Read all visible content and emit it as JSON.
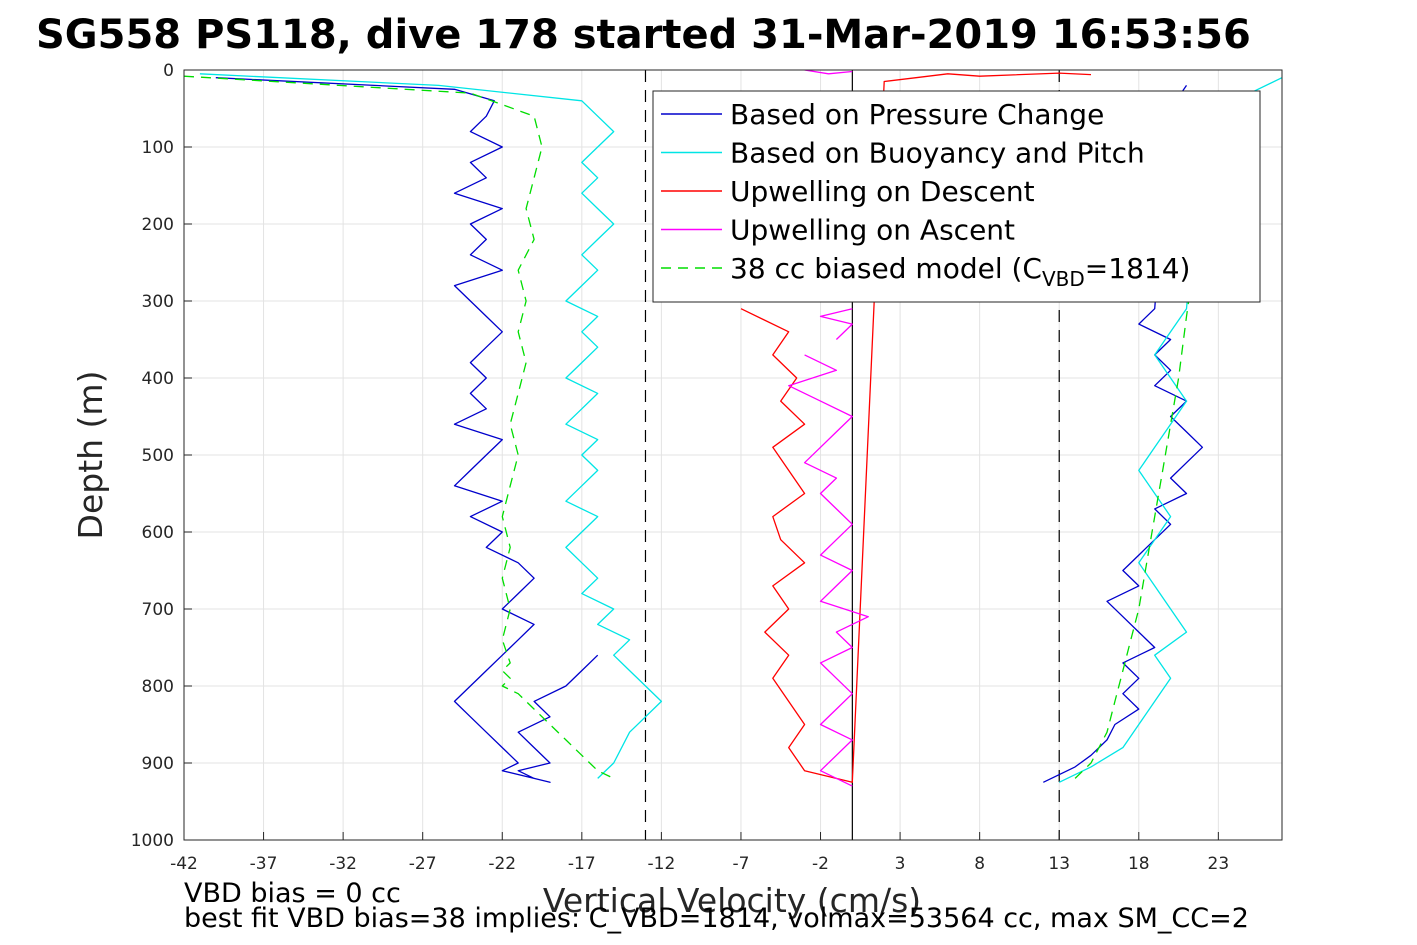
{
  "chart_data": {
    "type": "line",
    "title": "SG558 PS118, dive 178 started 31-Mar-2019 16:53:56",
    "xlabel": "Vertical Velocity (cm/s)",
    "ylabel": "Depth (m)",
    "xlim": [
      -42,
      27
    ],
    "ylim": [
      0,
      1000
    ],
    "y_reversed": true,
    "grid": true,
    "x_ticks": [
      -42,
      -37,
      -32,
      -27,
      -22,
      -17,
      -12,
      -7,
      -2,
      3,
      8,
      13,
      18,
      23
    ],
    "y_ticks": [
      0,
      100,
      200,
      300,
      400,
      500,
      600,
      700,
      800,
      900,
      1000
    ],
    "reference_lines": [
      {
        "x": 0,
        "style": "solid",
        "color": "#000000"
      },
      {
        "x": -13,
        "style": "dashed",
        "color": "#000000"
      },
      {
        "x": 13,
        "style": "dashed",
        "color": "#000000"
      }
    ],
    "legend_position": "top-right",
    "series": [
      {
        "name": "Based on Pressure Change",
        "color": "#0000cc",
        "style": "solid",
        "segments": [
          {
            "x": [
              -40,
              -25,
              -22.5,
              -23,
              -24,
              -22,
              -24,
              -23,
              -25,
              -22,
              -24,
              -23,
              -24,
              -22,
              -25,
              -24,
              -23,
              -22,
              -23,
              -24,
              -23,
              -24,
              -23,
              -25,
              -22,
              -23,
              -24,
              -25,
              -22,
              -24,
              -22,
              -23,
              -21,
              -20,
              -21,
              -22,
              -20,
              -21,
              -22,
              -23,
              -24,
              -25,
              -24,
              -23,
              -22,
              -21,
              -22,
              -20,
              -19,
              -20,
              -21,
              -19,
              -20,
              -21,
              -19,
              -20,
              -18,
              -17,
              -16
            ],
            "y": [
              10,
              25,
              40,
              60,
              80,
              100,
              120,
              140,
              160,
              180,
              200,
              220,
              240,
              260,
              280,
              300,
              320,
              340,
              360,
              380,
              400,
              420,
              440,
              460,
              480,
              500,
              520,
              540,
              560,
              580,
              600,
              620,
              640,
              660,
              680,
              700,
              720,
              740,
              760,
              780,
              800,
              820,
              840,
              860,
              880,
              900,
              910,
              920,
              925,
              920,
              910,
              900,
              880,
              860,
              840,
              820,
              800,
              780,
              760
            ]
          },
          {
            "x": [
              12,
              14,
              15,
              16,
              16.5,
              18,
              17,
              18,
              17,
              19,
              18,
              17,
              16,
              18,
              17,
              18,
              19,
              20,
              19,
              21,
              20,
              21,
              22,
              21,
              20,
              21,
              19,
              20,
              19,
              20,
              18,
              19,
              20,
              21
            ],
            "y": [
              925,
              905,
              890,
              870,
              850,
              830,
              810,
              790,
              770,
              750,
              730,
              710,
              690,
              670,
              650,
              630,
              610,
              590,
              570,
              550,
              530,
              510,
              490,
              470,
              450,
              430,
              410,
              390,
              370,
              350,
              330,
              310,
              50,
              20
            ]
          }
        ]
      },
      {
        "name": "Based on Buoyancy and Pitch",
        "color": "#00e5e5",
        "style": "solid",
        "segments": [
          {
            "x": [
              -41,
              -26,
              -17,
              -16,
              -15,
              -16,
              -17,
              -16,
              -17,
              -16,
              -15,
              -16,
              -17,
              -16,
              -17,
              -18,
              -16,
              -17,
              -16,
              -17,
              -18,
              -16,
              -17,
              -18,
              -16,
              -17,
              -16,
              -17,
              -18,
              -16,
              -17,
              -18,
              -17,
              -16,
              -17,
              -15,
              -16,
              -14,
              -15,
              -14,
              -13,
              -12,
              -14,
              -15,
              -16
            ],
            "y": [
              5,
              20,
              40,
              60,
              80,
              100,
              120,
              140,
              160,
              180,
              200,
              220,
              240,
              260,
              280,
              300,
              320,
              340,
              360,
              380,
              400,
              420,
              440,
              460,
              480,
              500,
              520,
              540,
              560,
              580,
              600,
              620,
              640,
              660,
              680,
              700,
              720,
              740,
              760,
              780,
              800,
              820,
              860,
              900,
              920
            ]
          },
          {
            "x": [
              13,
              15,
              17,
              18,
              19,
              20,
              19,
              21,
              20,
              19,
              18,
              19,
              20,
              19,
              18,
              19,
              20,
              21,
              20,
              19,
              20,
              21,
              22,
              23,
              25,
              27
            ],
            "y": [
              925,
              905,
              880,
              850,
              820,
              790,
              760,
              730,
              700,
              670,
              640,
              610,
              580,
              550,
              520,
              490,
              460,
              430,
              400,
              370,
              340,
              310,
              80,
              60,
              30,
              10
            ]
          }
        ]
      },
      {
        "name": "Upwelling on Descent",
        "color": "#ff0000",
        "style": "solid",
        "segments": [
          {
            "x": [
              -7,
              -4,
              -5,
              -3.5,
              -4.5,
              -3,
              -5,
              -4,
              -3,
              -5,
              -4.5,
              -3,
              -5,
              -4,
              -5.5,
              -4,
              -5,
              -4,
              -3,
              -4,
              -3,
              0,
              2,
              4,
              6,
              8,
              13,
              15
            ],
            "y": [
              310,
              340,
              370,
              400,
              430,
              460,
              490,
              520,
              550,
              580,
              610,
              640,
              670,
              700,
              730,
              760,
              790,
              820,
              850,
              880,
              910,
              925,
              15,
              10,
              5,
              8,
              4,
              6
            ]
          }
        ]
      },
      {
        "name": "Upwelling on Ascent",
        "color": "#ff00ff",
        "style": "solid",
        "segments": [
          {
            "x": [
              0,
              -2,
              -1,
              0,
              -2,
              -1,
              0,
              -1,
              -2,
              0,
              -1,
              1,
              -2,
              -1,
              0,
              -2,
              -1,
              0,
              -1,
              -2,
              -1,
              -3,
              -2,
              -1,
              0,
              -2,
              -4,
              -1,
              -3
            ],
            "y": [
              930,
              910,
              890,
              870,
              850,
              830,
              810,
              790,
              770,
              750,
              730,
              710,
              690,
              670,
              650,
              630,
              610,
              590,
              570,
              550,
              530,
              510,
              490,
              470,
              450,
              430,
              410,
              390,
              370
            ]
          },
          {
            "x": [
              -1,
              0,
              -2,
              0
            ],
            "y": [
              350,
              330,
              320,
              310
            ]
          },
          {
            "x": [
              -3,
              -1.5,
              0
            ],
            "y": [
              0,
              5,
              2
            ]
          }
        ]
      },
      {
        "name": "38 cc biased model (C",
        "name_sub": "VBD",
        "name_tail": "=1814)",
        "color": "#00dd00",
        "style": "dashed",
        "segments": [
          {
            "x": [
              -42,
              -24,
              -20,
              -19.5,
              -20,
              -20.5,
              -20,
              -21,
              -20.5,
              -21,
              -20.5,
              -21,
              -21.5,
              -21,
              -21.5,
              -22,
              -21.5,
              -22,
              -21.5,
              -22,
              -21.5,
              -22,
              -21.5,
              -22,
              -21,
              -20,
              -19,
              -18,
              -17,
              -16,
              -15
            ],
            "y": [
              8,
              30,
              60,
              100,
              140,
              180,
              220,
              260,
              300,
              340,
              380,
              420,
              460,
              500,
              540,
              580,
              620,
              660,
              700,
              740,
              770,
              780,
              790,
              800,
              810,
              830,
              850,
              870,
              890,
              910,
              920
            ]
          },
          {
            "x": [
              14,
              15,
              16,
              16.5,
              17,
              17.5,
              18,
              18.5,
              19,
              19.5,
              20,
              20.5,
              21,
              23
            ],
            "y": [
              920,
              900,
              860,
              820,
              780,
              740,
              700,
              640,
              580,
              520,
              460,
              400,
              320,
              30
            ]
          }
        ]
      }
    ]
  },
  "footer": {
    "line1": "VBD bias = 0 cc",
    "line2": "best fit VBD bias=38 implies: C_VBD=1814, volmax=53564 cc, max SM_CC=2"
  }
}
